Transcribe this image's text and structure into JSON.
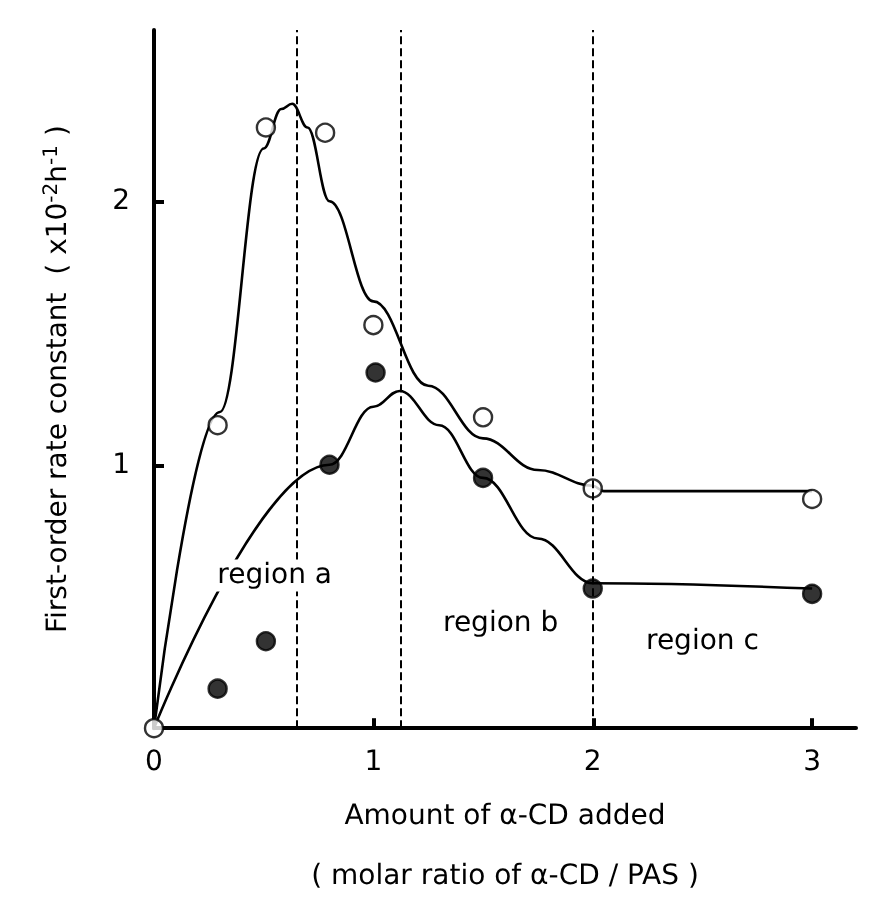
{
  "chart_data": {
    "type": "scatter",
    "xlabel": "Amount of α-CD added\n( molar ratio of α-CD / PAS )",
    "ylabel": "First-order rate constant  ( x10$^{-2}$h$^{-1}$ )",
    "xlim": [
      0,
      3.2
    ],
    "ylim": [
      0,
      2.65
    ],
    "xticks": [
      0,
      1,
      2,
      3
    ],
    "yticks": [
      1,
      2
    ],
    "marker": "circle",
    "grid": false,
    "series": [
      {
        "type": "line",
        "color": "#000000",
        "marker": "none",
        "x": [
          0,
          0.3,
          0.5,
          0.58,
          0.63,
          0.7,
          0.8,
          1.0,
          1.25,
          1.5,
          1.75,
          2.0,
          2.05,
          3.0
        ],
        "values": [
          0,
          1.2,
          2.2,
          2.35,
          2.37,
          2.28,
          2.0,
          1.62,
          1.3,
          1.1,
          0.98,
          0.92,
          0.9,
          0.9
        ]
      },
      {
        "type": "line",
        "color": "#000000",
        "marker": "none",
        "x": [
          0,
          0.8,
          1.0,
          1.12,
          1.3,
          1.5,
          1.75,
          2.0,
          3.0
        ],
        "values": [
          0,
          1.0,
          1.22,
          1.28,
          1.15,
          0.95,
          0.72,
          0.55,
          0.53
        ]
      },
      {
        "color": "#ffffff",
        "x": [
          0,
          0.29,
          0.51,
          0.78,
          1.0,
          1.5,
          2.0,
          3.0
        ],
        "values": [
          0,
          1.15,
          2.28,
          2.26,
          1.53,
          1.18,
          0.91,
          0.87
        ]
      },
      {
        "color": "#000000",
        "x": [
          0.29,
          0.51,
          0.8,
          1.01,
          1.5,
          2.0,
          3.0
        ],
        "values": [
          0.15,
          0.33,
          1.0,
          1.35,
          0.95,
          0.53,
          0.51
        ]
      }
    ],
    "ref_lines": [
      {
        "axis": "x",
        "value": 0.65,
        "line_style": "dashed"
      },
      {
        "axis": "x",
        "value": 1.12,
        "line_style": "dashed"
      },
      {
        "axis": "x",
        "value": 2.0,
        "line_style": "dashed"
      }
    ],
    "annotations": [
      "region a",
      "region b",
      "region c"
    ]
  }
}
